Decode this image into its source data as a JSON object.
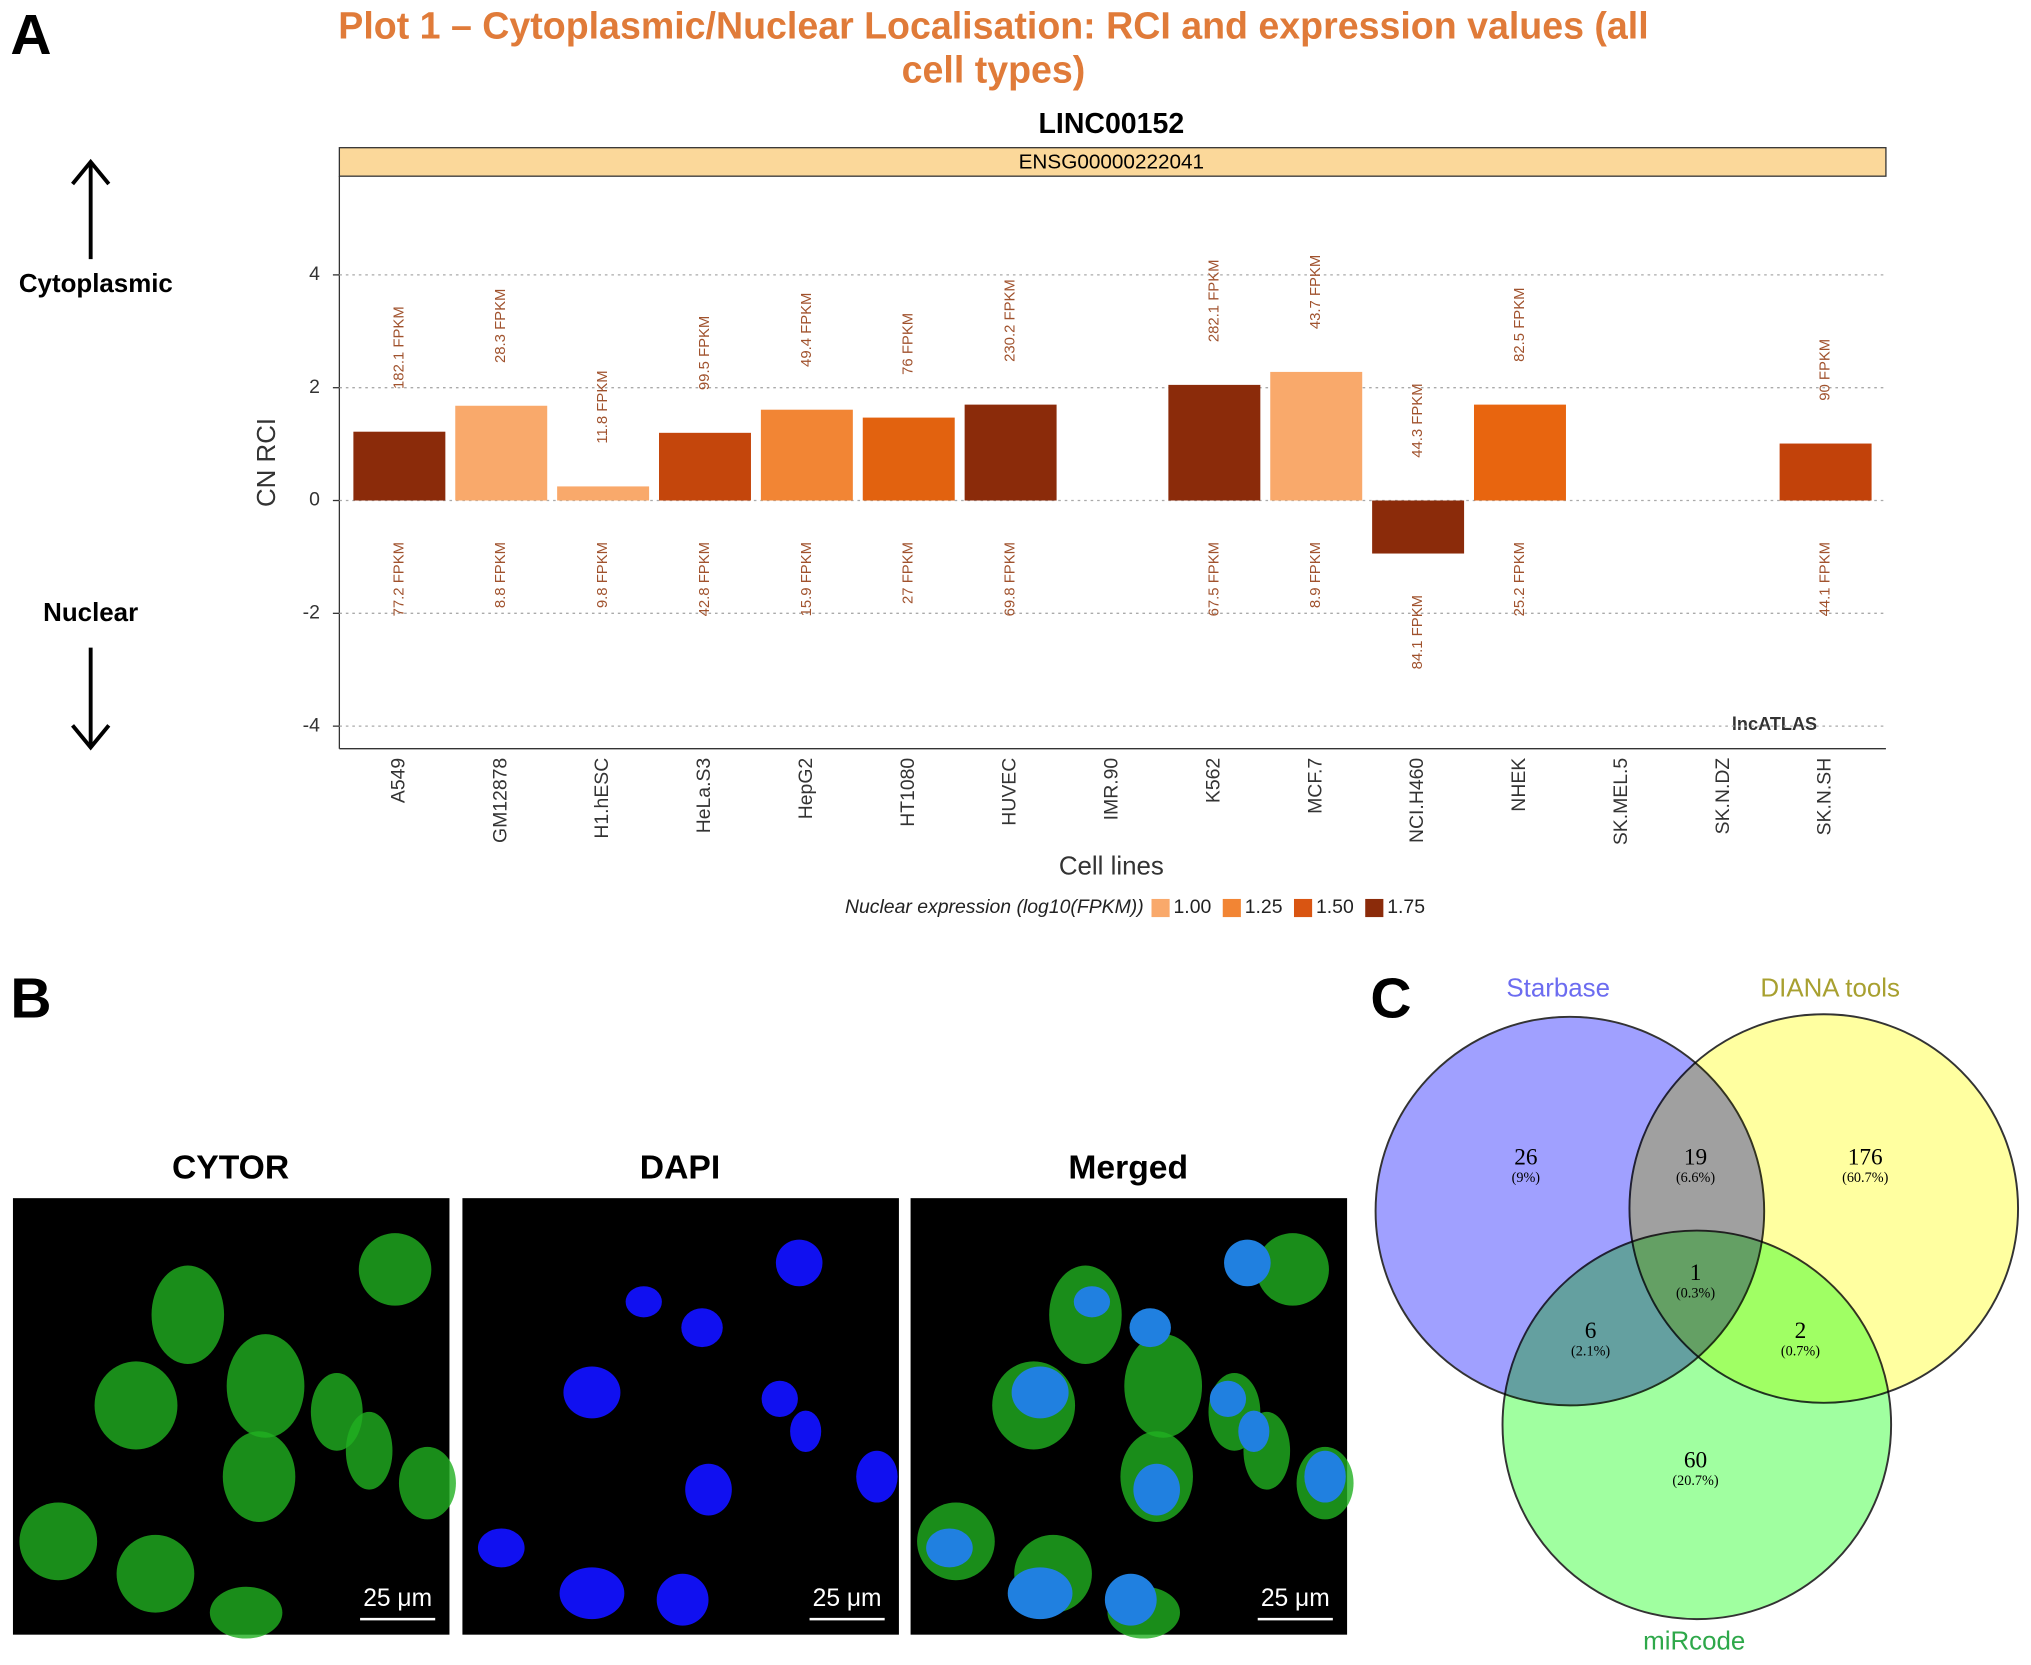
{
  "panel_labels": [
    "A",
    "B",
    "C"
  ],
  "chart_data": {
    "type": "bar",
    "title": [
      "Plot 1 – Cytoplasmic/Nuclear Localisation: RCI and expression values (all",
      "cell types)"
    ],
    "gene": "LINC00152",
    "strip": "ENSG00000222041",
    "watermark": "lncATLAS",
    "x_label": "Cell lines",
    "y_label": "CN RCI",
    "side_labels": {
      "up": "Cytoplasmic",
      "down": "Nuclear"
    },
    "categories": [
      "A549",
      "GM12878",
      "H1.hESC",
      "HeLa.S3",
      "HepG2",
      "HT1080",
      "HUVEC",
      "IMR.90",
      "K562",
      "MCF.7",
      "NCI.H460",
      "NHEK",
      "SK.MEL.5",
      "SK.N.DZ",
      "SK.N.SH"
    ],
    "values": [
      1.22,
      1.68,
      0.25,
      1.2,
      1.61,
      1.47,
      1.7,
      null,
      2.05,
      2.28,
      -0.94,
      1.7,
      null,
      null,
      1.01
    ],
    "colors": [
      "#8b2b0a",
      "#f9a96b",
      "#f9a96b",
      "#c4460c",
      "#f28534",
      "#e2620f",
      "#8b2b0a",
      null,
      "#8b2b0a",
      "#f9a96b",
      "#8b2b0a",
      "#e8650f",
      null,
      null,
      "#c2420a"
    ],
    "cytoplasmic_labels": [
      "182.1 FPKM",
      "28.3 FPKM",
      "11.8 FPKM",
      "99.5 FPKM",
      "49.4 FPKM",
      "76 FPKM",
      "230.2 FPKM",
      null,
      "282.1 FPKM",
      "43.7 FPKM",
      "44.3 FPKM",
      "82.5 FPKM",
      null,
      null,
      "90 FPKM"
    ],
    "nuclear_labels": [
      "77.2 FPKM",
      "8.8 FPKM",
      "9.8 FPKM",
      "42.8 FPKM",
      "15.9 FPKM",
      "27 FPKM",
      "69.8 FPKM",
      null,
      "67.5 FPKM",
      "8.9 FPKM",
      "84.1 FPKM",
      "25.2 FPKM",
      null,
      null,
      "44.1 FPKM"
    ],
    "ylim": [
      -4.4,
      5.75
    ],
    "yticks": [
      -4,
      -2,
      0,
      2,
      4
    ],
    "grid": true,
    "legend": {
      "title": "Nuclear expression (log10(FPKM))",
      "items": [
        {
          "value": 1,
          "label": "1.00",
          "color": "#f9a96b"
        },
        {
          "value": 1.25,
          "label": "1.25",
          "color": "#f28534"
        },
        {
          "value": 1.5,
          "label": "1.50",
          "color": "#d95512"
        },
        {
          "value": 1.75,
          "label": "1.75",
          "color": "#8b2b0a"
        }
      ]
    }
  },
  "micrographs": [
    {
      "title": "CYTOR",
      "scale": "25 μm"
    },
    {
      "title": "DAPI",
      "scale": "25 μm"
    },
    {
      "title": "Merged",
      "scale": "25 μm"
    }
  ],
  "venn": {
    "sets": [
      {
        "name": "Starbase",
        "color": "#6c6cf0"
      },
      {
        "name": "DIANA tools",
        "color": "#a8a030"
      },
      {
        "name": "miRcode",
        "color": "#2ea84a"
      }
    ],
    "regions": [
      {
        "count": 26,
        "percent": "(9%)"
      },
      {
        "count": 19,
        "percent": "(6.6%)"
      },
      {
        "count": 176,
        "percent": "(60.7%)"
      },
      {
        "count": 1,
        "percent": "(0.3%)"
      },
      {
        "count": 6,
        "percent": "(2.1%)"
      },
      {
        "count": 2,
        "percent": "(0.7%)"
      },
      {
        "count": 60,
        "percent": "(20.7%)"
      }
    ]
  }
}
